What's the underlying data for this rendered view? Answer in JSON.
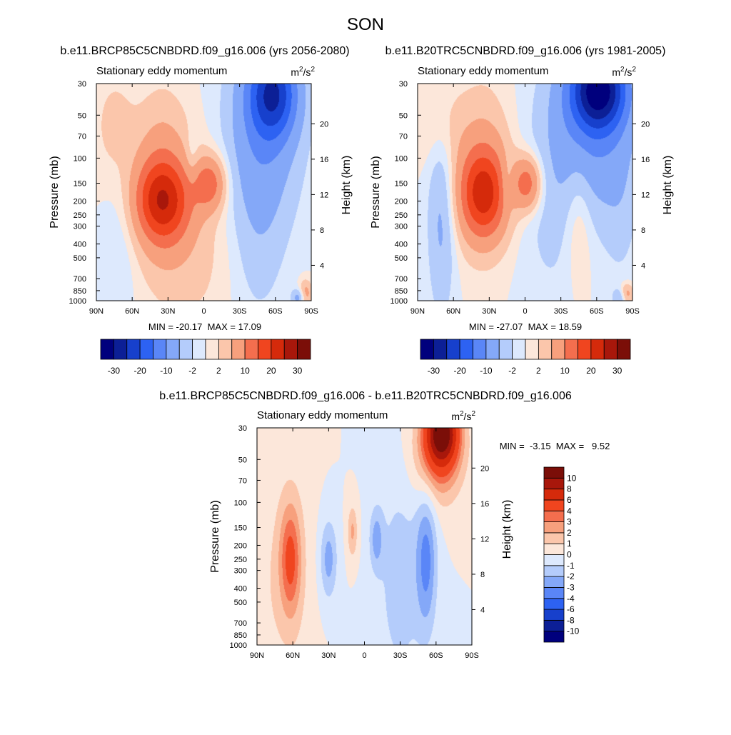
{
  "figure": {
    "title": "SON"
  },
  "color_palette": {
    "blue_to_red": [
      "#00007d",
      "#0c1f96",
      "#1740cc",
      "#2d62f2",
      "#5a86f7",
      "#84a8f8",
      "#b4ccfb",
      "#dde9fd",
      "#fce7da",
      "#fbc6ab",
      "#f7a07d",
      "#f46e4e",
      "#f0451f",
      "#d52a0b",
      "#a8170b",
      "#7b0e08"
    ],
    "diff": [
      "#00007d",
      "#0c1f96",
      "#1740cc",
      "#2d62f2",
      "#5a86f7",
      "#84a8f8",
      "#b4ccfb",
      "#dde9fd",
      "#fce7da",
      "#fbc6ab",
      "#f7a07d",
      "#f46e4e",
      "#f0451f",
      "#d52a0b",
      "#a8170b",
      "#7b0e08"
    ]
  },
  "chart_data": [
    {
      "type": "heatmap",
      "title": "b.e11.BRCP85C5CNBDRD.f09_g16.006 (yrs 2056-2080)",
      "left_label": "Stationary eddy momentum",
      "units_base": "m",
      "units_exp1": "2",
      "units_mid": "/s",
      "units_exp2": "2",
      "xlabel": "",
      "ylabel": "Pressure (mb)",
      "ylabel_right": "Height (km)",
      "x_ticks": [
        "90N",
        "60N",
        "30N",
        "0",
        "30S",
        "60S",
        "90S"
      ],
      "x_tick_values": [
        90,
        60,
        30,
        0,
        -30,
        -60,
        -90
      ],
      "y_ticks": [
        "30",
        "50",
        "70",
        "100",
        "150",
        "200",
        "250",
        "300",
        "400",
        "500",
        "700",
        "850",
        "1000"
      ],
      "y_tick_values": [
        30,
        50,
        70,
        100,
        150,
        200,
        250,
        300,
        400,
        500,
        700,
        850,
        1000
      ],
      "height_ticks": [
        "20",
        "16",
        "12",
        "8",
        "4"
      ],
      "height_tick_values": [
        20,
        16,
        12,
        8,
        4
      ],
      "xlim": [
        90,
        -90
      ],
      "ylim": [
        1000,
        30
      ],
      "y_scale": "log",
      "min_max_text": "MIN = -20.17  MAX = 17.09",
      "min": -20.17,
      "max": 17.09,
      "colorbar": {
        "orientation": "horizontal",
        "levels": [
          -30,
          -25,
          -20,
          -15,
          -10,
          -5,
          -2,
          0,
          2,
          5,
          10,
          15,
          20,
          25,
          30
        ],
        "tick_labels": [
          "-30",
          "-20",
          "-10",
          "-2",
          "2",
          "10",
          "20",
          "30"
        ],
        "tick_values": [
          -30,
          -20,
          -10,
          -2,
          2,
          10,
          20,
          30
        ]
      },
      "features": [
        {
          "lat": 35,
          "p": 200,
          "value": 17.09,
          "slat": 16,
          "sp": 0.45
        },
        {
          "lat": 35,
          "p": 150,
          "value": 8,
          "slat": 16,
          "sp": 0.9
        },
        {
          "lat": -5,
          "p": 150,
          "value": 12,
          "slat": 9,
          "sp": 0.3
        },
        {
          "lat": -58,
          "p": 35,
          "value": -20.17,
          "slat": 14,
          "sp": 0.5
        },
        {
          "lat": -50,
          "p": 60,
          "value": -8,
          "slat": 22,
          "sp": 1.1
        },
        {
          "lat": -45,
          "p": 300,
          "value": -3,
          "slat": 16,
          "sp": 1.2
        },
        {
          "lat": 75,
          "p": 60,
          "value": 3,
          "slat": 12,
          "sp": 0.6
        },
        {
          "lat": 70,
          "p": 400,
          "value": -2,
          "slat": 10,
          "sp": 0.9
        },
        {
          "lat": 10,
          "p": 400,
          "value": 3,
          "slat": 25,
          "sp": 1.0
        },
        {
          "lat": 10,
          "p": 100,
          "value": -3,
          "slat": 4,
          "sp": 0.3
        },
        {
          "lat": -85,
          "p": 900,
          "value": 8,
          "slat": 4,
          "sp": 0.15
        },
        {
          "lat": -80,
          "p": 950,
          "value": -8,
          "slat": 4,
          "sp": 0.1
        }
      ]
    },
    {
      "type": "heatmap",
      "title": "b.e11.B20TRC5CNBDRD.f09_g16.006 (yrs 1981-2005)",
      "left_label": "Stationary eddy momentum",
      "units_base": "m",
      "units_exp1": "2",
      "units_mid": "/s",
      "units_exp2": "2",
      "xlabel": "",
      "ylabel": "Pressure (mb)",
      "ylabel_right": "Height (km)",
      "x_ticks": [
        "90N",
        "60N",
        "30N",
        "0",
        "30S",
        "60S",
        "90S"
      ],
      "x_tick_values": [
        90,
        60,
        30,
        0,
        -30,
        -60,
        -90
      ],
      "y_ticks": [
        "30",
        "50",
        "70",
        "100",
        "150",
        "200",
        "250",
        "300",
        "400",
        "500",
        "700",
        "850",
        "1000"
      ],
      "y_tick_values": [
        30,
        50,
        70,
        100,
        150,
        200,
        250,
        300,
        400,
        500,
        700,
        850,
        1000
      ],
      "height_ticks": [
        "20",
        "16",
        "12",
        "8",
        "4"
      ],
      "height_tick_values": [
        20,
        16,
        12,
        8,
        4
      ],
      "xlim": [
        90,
        -90
      ],
      "ylim": [
        1000,
        30
      ],
      "y_scale": "log",
      "min_max_text": "MIN = -27.07  MAX = 18.59",
      "min": -27.07,
      "max": 18.59,
      "colorbar": {
        "orientation": "horizontal",
        "levels": [
          -30,
          -25,
          -20,
          -15,
          -10,
          -5,
          -2,
          0,
          2,
          5,
          10,
          15,
          20,
          25,
          30
        ],
        "tick_labels": [
          "-30",
          "-20",
          "-10",
          "-2",
          "2",
          "10",
          "20",
          "30"
        ],
        "tick_values": [
          -30,
          -20,
          -10,
          -2,
          2,
          10,
          20,
          30
        ]
      },
      "features": [
        {
          "lat": 35,
          "p": 180,
          "value": 18.59,
          "slat": 14,
          "sp": 0.5
        },
        {
          "lat": 35,
          "p": 120,
          "value": 6,
          "slat": 16,
          "sp": 0.9
        },
        {
          "lat": -2,
          "p": 150,
          "value": 13,
          "slat": 8,
          "sp": 0.3
        },
        {
          "lat": -62,
          "p": 33,
          "value": -27.07,
          "slat": 16,
          "sp": 0.45
        },
        {
          "lat": -55,
          "p": 60,
          "value": -10,
          "slat": 26,
          "sp": 1.0
        },
        {
          "lat": 70,
          "p": 250,
          "value": -6,
          "slat": 8,
          "sp": 1.1
        },
        {
          "lat": 70,
          "p": 60,
          "value": 3,
          "slat": 14,
          "sp": 0.5
        },
        {
          "lat": -45,
          "p": 250,
          "value": 4,
          "slat": 8,
          "sp": 0.8
        },
        {
          "lat": 15,
          "p": 150,
          "value": -4,
          "slat": 4,
          "sp": 0.3
        },
        {
          "lat": -20,
          "p": 300,
          "value": -2,
          "slat": 18,
          "sp": 1.2
        },
        {
          "lat": -80,
          "p": 250,
          "value": -2,
          "slat": 10,
          "sp": 0.9
        },
        {
          "lat": -85,
          "p": 900,
          "value": 8,
          "slat": 4,
          "sp": 0.12
        },
        {
          "lat": -80,
          "p": 950,
          "value": -6,
          "slat": 4,
          "sp": 0.1
        }
      ]
    },
    {
      "type": "heatmap",
      "title": "b.e11.BRCP85C5CNBDRD.f09_g16.006 - b.e11.B20TRC5CNBDRD.f09_g16.006",
      "left_label": "Stationary eddy momentum",
      "units_base": "m",
      "units_exp1": "2",
      "units_mid": "/s",
      "units_exp2": "2",
      "xlabel": "",
      "ylabel": "Pressure (mb)",
      "ylabel_right": "Height (km)",
      "x_ticks": [
        "90N",
        "60N",
        "30N",
        "0",
        "30S",
        "60S",
        "90S"
      ],
      "x_tick_values": [
        90,
        60,
        30,
        0,
        -30,
        -60,
        -90
      ],
      "y_ticks": [
        "30",
        "50",
        "70",
        "100",
        "150",
        "200",
        "250",
        "300",
        "400",
        "500",
        "700",
        "850",
        "1000"
      ],
      "y_tick_values": [
        30,
        50,
        70,
        100,
        150,
        200,
        250,
        300,
        400,
        500,
        700,
        850,
        1000
      ],
      "height_ticks": [
        "20",
        "16",
        "12",
        "8",
        "4"
      ],
      "height_tick_values": [
        20,
        16,
        12,
        8,
        4
      ],
      "xlim": [
        90,
        -90
      ],
      "ylim": [
        1000,
        30
      ],
      "y_scale": "log",
      "min_max_text": "MIN =  -3.15  MAX =   9.52",
      "min": -3.15,
      "max": 9.52,
      "colorbar": {
        "orientation": "vertical",
        "levels": [
          -10,
          -8,
          -6,
          -4,
          -3,
          -2,
          -1,
          0,
          1,
          2,
          3,
          4,
          6,
          8,
          10
        ],
        "tick_labels": [
          "-10",
          "-8",
          "-6",
          "-4",
          "-3",
          "-2",
          "-1",
          "0",
          "1",
          "2",
          "3",
          "4",
          "6",
          "8",
          "10"
        ],
        "tick_values": [
          -10,
          -8,
          -6,
          -4,
          -3,
          -2,
          -1,
          0,
          1,
          2,
          3,
          4,
          6,
          8,
          10
        ]
      },
      "features": [
        {
          "lat": -65,
          "p": 32,
          "value": 9.52,
          "slat": 9,
          "sp": 0.35
        },
        {
          "lat": -62,
          "p": 45,
          "value": 4,
          "slat": 14,
          "sp": 0.55
        },
        {
          "lat": 62,
          "p": 250,
          "value": 3.5,
          "slat": 6,
          "sp": 0.6
        },
        {
          "lat": 62,
          "p": 300,
          "value": 1.2,
          "slat": 12,
          "sp": 1.3
        },
        {
          "lat": 30,
          "p": 250,
          "value": -2.5,
          "slat": 5,
          "sp": 0.45
        },
        {
          "lat": 10,
          "p": 160,
          "value": 2.2,
          "slat": 3,
          "sp": 0.3
        },
        {
          "lat": -10,
          "p": 180,
          "value": -2.2,
          "slat": 4,
          "sp": 0.35
        },
        {
          "lat": -52,
          "p": 250,
          "value": -3.15,
          "slat": 6,
          "sp": 0.8
        },
        {
          "lat": -30,
          "p": 350,
          "value": -1.5,
          "slat": 14,
          "sp": 1.3
        },
        {
          "lat": 80,
          "p": 400,
          "value": 0.5,
          "slat": 8,
          "sp": 1.0
        }
      ]
    }
  ]
}
